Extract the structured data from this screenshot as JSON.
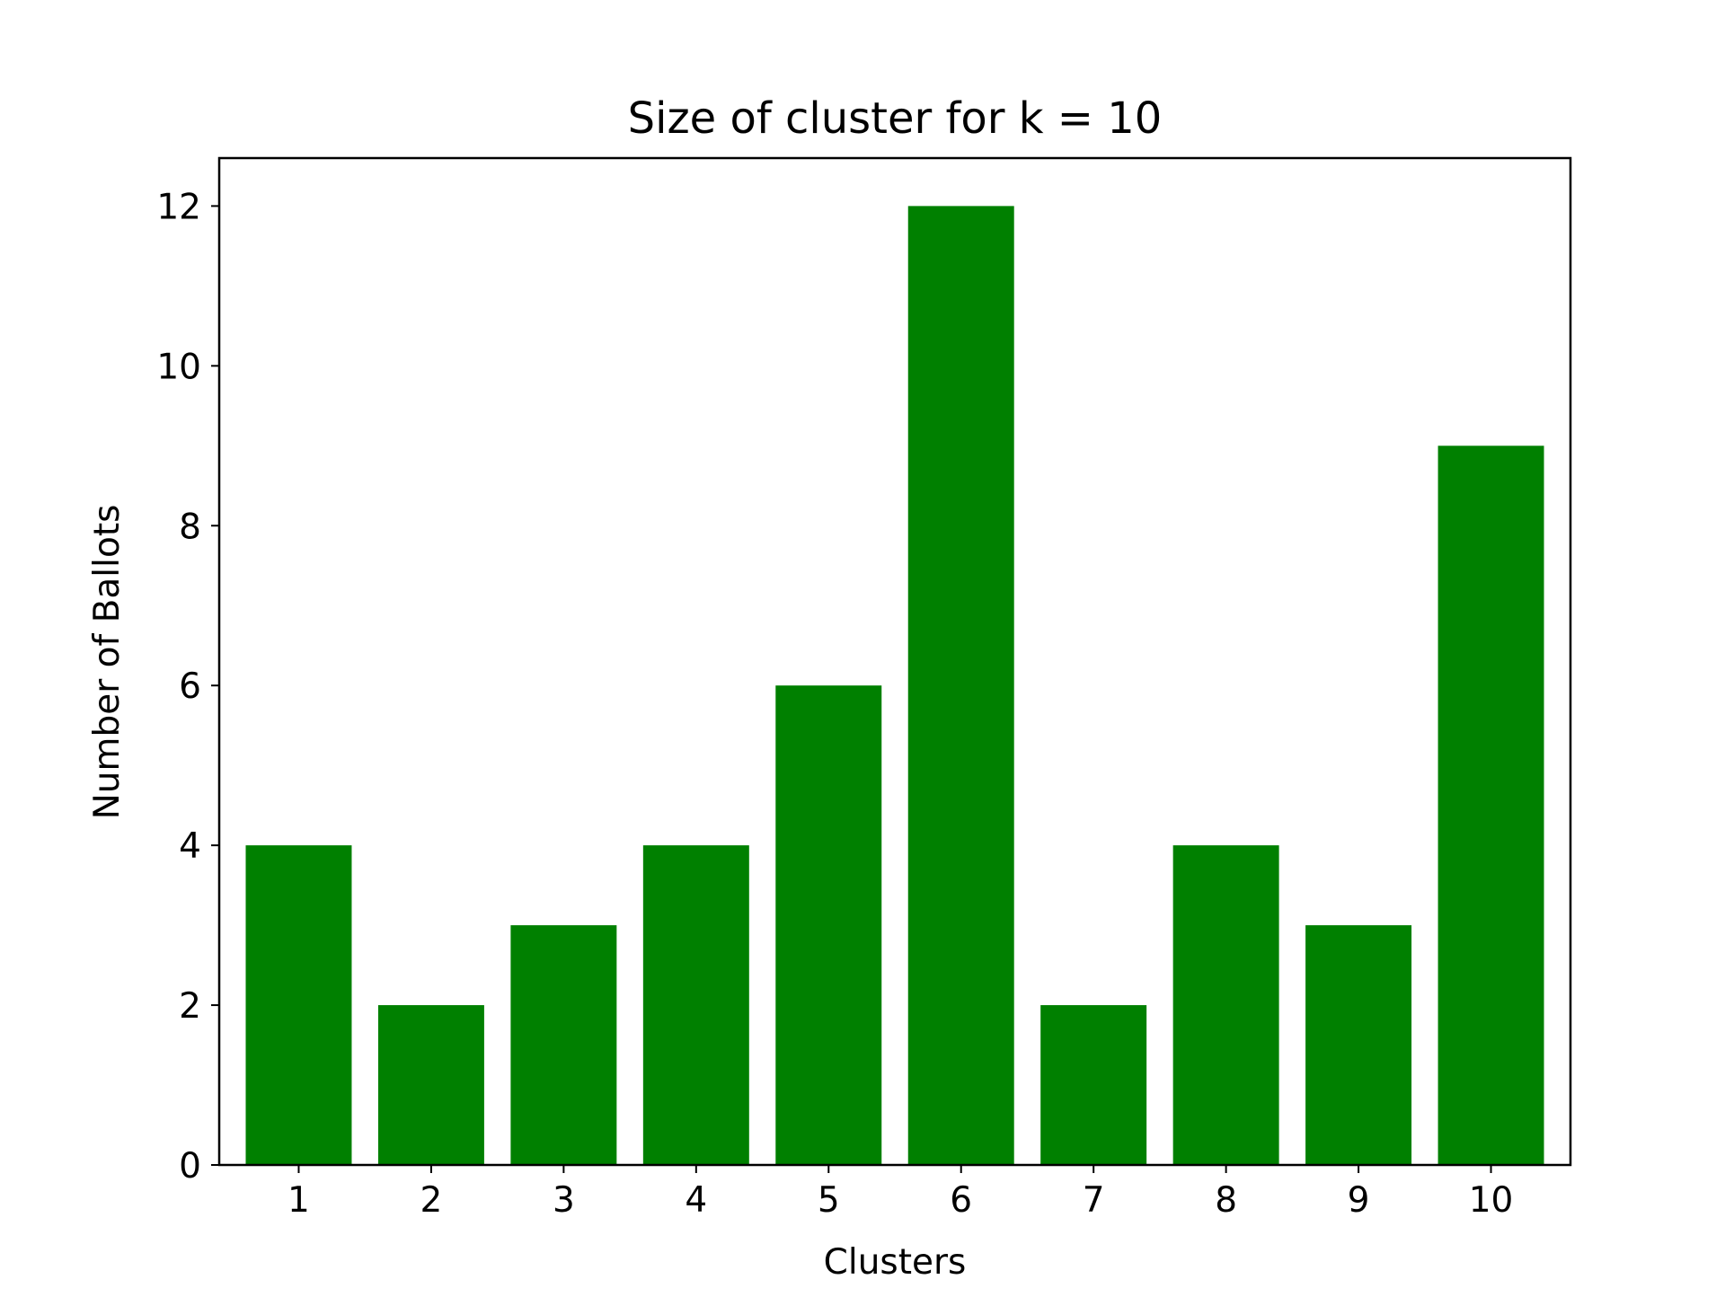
{
  "chart_data": {
    "type": "bar",
    "title": "Size of cluster for k = 10",
    "xlabel": "Clusters",
    "ylabel": "Number of Ballots",
    "categories": [
      "1",
      "2",
      "3",
      "4",
      "5",
      "6",
      "7",
      "8",
      "9",
      "10"
    ],
    "values": [
      4,
      2,
      3,
      4,
      6,
      12,
      2,
      4,
      3,
      9
    ],
    "ylim": [
      0,
      12.6
    ],
    "yticks": [
      "0",
      "2",
      "4",
      "6",
      "8",
      "10",
      "12"
    ],
    "bar_color": "#008000",
    "grid": false,
    "legend": false
  }
}
